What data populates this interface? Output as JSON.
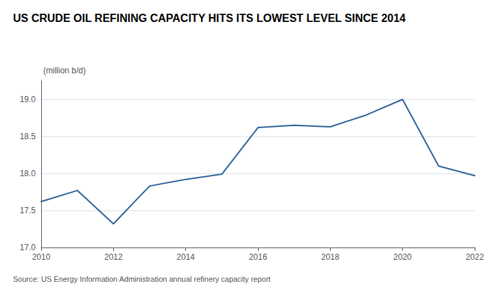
{
  "chart_data": {
    "type": "line",
    "title": "US CRUDE OIL REFINING CAPACITY HITS ITS LOWEST LEVEL SINCE 2014",
    "subtitle": "(million b/d)",
    "source": "Source: US Energy Information Administration annual refinery capacity report",
    "x": [
      2010,
      2011,
      2012,
      2013,
      2014,
      2015,
      2016,
      2017,
      2018,
      2019,
      2020,
      2021,
      2022
    ],
    "values": [
      17.62,
      17.77,
      17.32,
      17.83,
      17.92,
      17.99,
      18.62,
      18.65,
      18.63,
      18.79,
      19.0,
      18.1,
      17.97
    ],
    "color": "#2a6099",
    "xlim": [
      2010,
      2022
    ],
    "xticks": [
      2010,
      2012,
      2014,
      2016,
      2018,
      2020,
      2022
    ],
    "ylim": [
      17.0,
      19.25
    ],
    "yticks": [
      {
        "value": 17.0,
        "label": "17.0"
      },
      17.5,
      {
        "value": 18.0,
        "label": "18.0"
      },
      18.5,
      {
        "value": 19.0,
        "label": "19.0"
      }
    ],
    "grid": true
  }
}
